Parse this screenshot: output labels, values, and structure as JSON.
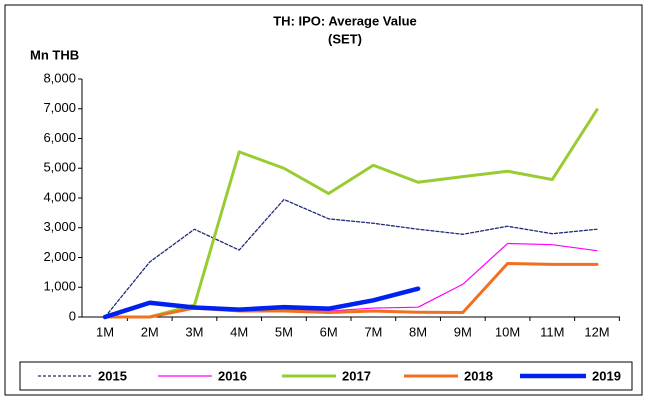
{
  "chart_data": {
    "type": "line",
    "title": "TH: IPO: Average Value",
    "subtitle": "(SET)",
    "y_label": "Mn THB",
    "categories": [
      "1M",
      "2M",
      "3M",
      "4M",
      "5M",
      "6M",
      "7M",
      "8M",
      "9M",
      "10M",
      "11M",
      "12M"
    ],
    "series": [
      {
        "name": "2015",
        "color": "#1f2a7a",
        "style": "dashed",
        "values": [
          0,
          1850,
          2950,
          2250,
          3950,
          3300,
          3150,
          2950,
          2780,
          3050,
          2800,
          2950
        ]
      },
      {
        "name": "2016",
        "color": "#ff00ff",
        "style": "solid",
        "values": [
          0,
          480,
          350,
          200,
          250,
          200,
          300,
          330,
          1100,
          2470,
          2430,
          2230
        ]
      },
      {
        "name": "2017",
        "color": "#99cc33",
        "style": "solid",
        "values": [
          0,
          0,
          400,
          5550,
          5000,
          4150,
          5100,
          4530,
          4720,
          4900,
          4620,
          6970
        ]
      },
      {
        "name": "2018",
        "color": "#f07020",
        "style": "solid",
        "values": [
          0,
          0,
          300,
          200,
          200,
          150,
          200,
          160,
          150,
          1800,
          1770,
          1770
        ]
      },
      {
        "name": "2019",
        "color": "#0022ee",
        "style": "solid",
        "values": [
          0,
          480,
          320,
          250,
          330,
          280,
          560,
          950,
          null,
          null,
          null,
          null
        ]
      }
    ],
    "ylim": [
      0,
      8000
    ],
    "yticks": [
      0,
      {
        "value": 1000,
        "label": "1,000"
      },
      {
        "value": 2000,
        "label": "2,000"
      },
      {
        "value": 3000,
        "label": "3,000"
      },
      {
        "value": 4000,
        "label": "4,000"
      },
      {
        "value": 5000,
        "label": "5,000"
      },
      {
        "value": 6000,
        "label": "6,000"
      },
      {
        "value": 7000,
        "label": "7,000"
      },
      {
        "value": 8000,
        "label": "8,000"
      }
    ],
    "legend": "bottom"
  }
}
